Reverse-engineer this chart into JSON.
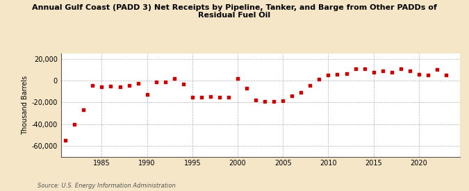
{
  "title": "Annual Gulf Coast (PADD 3) Net Receipts by Pipeline, Tanker, and Barge from Other PADDs of\nResidual Fuel Oil",
  "ylabel": "Thousand Barrels",
  "source": "Source: U.S. Energy Information Administration",
  "background_color": "#f5e6c8",
  "plot_bg_color": "#ffffff",
  "marker_color": "#cc0000",
  "years": [
    1981,
    1982,
    1983,
    1984,
    1985,
    1986,
    1987,
    1988,
    1989,
    1990,
    1991,
    1992,
    1993,
    1994,
    1995,
    1996,
    1997,
    1998,
    1999,
    2000,
    2001,
    2002,
    2003,
    2004,
    2005,
    2006,
    2007,
    2008,
    2009,
    2010,
    2011,
    2012,
    2013,
    2014,
    2015,
    2016,
    2017,
    2018,
    2019,
    2020,
    2021,
    2022,
    2023
  ],
  "values": [
    -55000,
    -40000,
    -27000,
    -4500,
    -5500,
    -5000,
    -5500,
    -4500,
    -2500,
    -13000,
    -1500,
    -1000,
    2000,
    -3000,
    -15000,
    -15500,
    -14500,
    -15000,
    -15000,
    2000,
    -7000,
    -18000,
    -19000,
    -19000,
    -18500,
    -14000,
    -11000,
    -4500,
    1500,
    5000,
    5500,
    6500,
    11000,
    11000,
    8000,
    9000,
    8000,
    11000,
    9000,
    6000,
    5000,
    10000,
    5000
  ],
  "ylim": [
    -70000,
    25000
  ],
  "yticks": [
    -60000,
    -40000,
    -20000,
    0,
    20000
  ],
  "xlim": [
    1980.5,
    2024.5
  ],
  "xticks": [
    1985,
    1990,
    1995,
    2000,
    2005,
    2010,
    2015,
    2020
  ]
}
